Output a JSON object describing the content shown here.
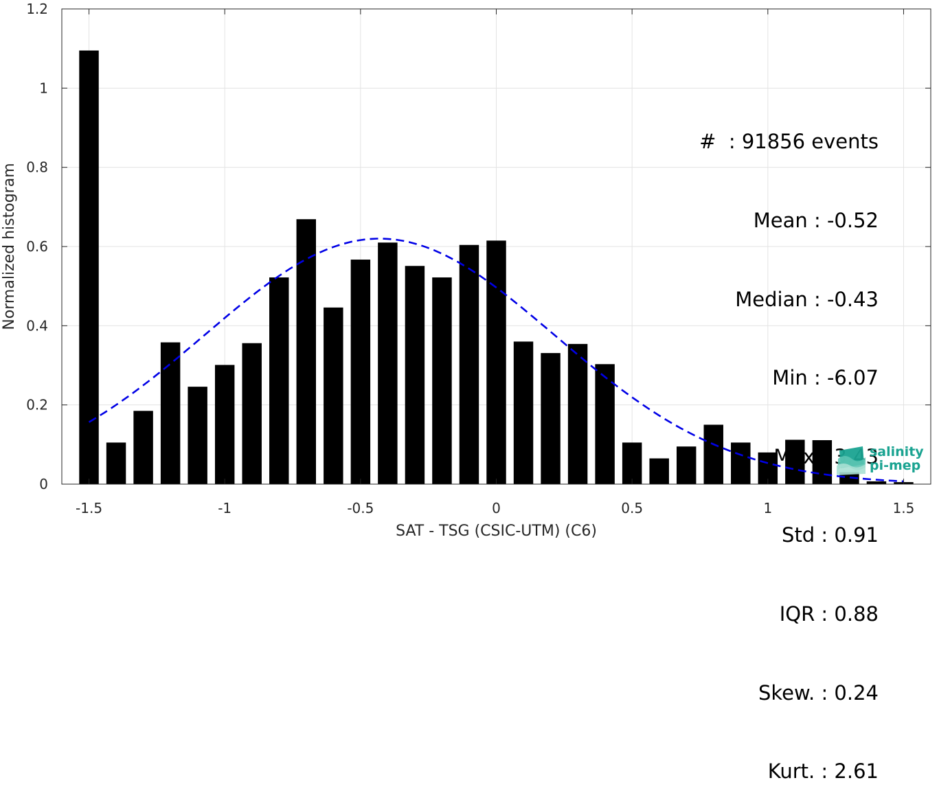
{
  "chart_data": {
    "type": "bar",
    "xlabel": "SAT - TSG (CSIC-UTM) (C6)",
    "ylabel": "Normalized histogram",
    "xlim": [
      -1.6,
      1.6
    ],
    "ylim": [
      0,
      1.2
    ],
    "xticks": [
      -1.5,
      -1,
      -0.5,
      0,
      0.5,
      1,
      1.5
    ],
    "xtick_labels": [
      "-1.5",
      "-1",
      "-0.5",
      "0",
      "0.5",
      "1",
      "1.5"
    ],
    "yticks": [
      0,
      0.2,
      0.4,
      0.6,
      0.8,
      1,
      1.2
    ],
    "ytick_labels": [
      "0",
      "0.2",
      "0.4",
      "0.6",
      "0.8",
      "1",
      "1.2"
    ],
    "grid": true,
    "bar_color": "#000000",
    "fit_color": "#0000e6",
    "bin_width": 0.1,
    "bars": {
      "x": [
        -1.5,
        -1.4,
        -1.3,
        -1.2,
        -1.1,
        -1.0,
        -0.9,
        -0.8,
        -0.7,
        -0.6,
        -0.5,
        -0.4,
        -0.3,
        -0.2,
        -0.1,
        0.0,
        0.1,
        0.2,
        0.3,
        0.4,
        0.5,
        0.6,
        0.7,
        0.8,
        0.9,
        1.0,
        1.1,
        1.2,
        1.3,
        1.4,
        1.5
      ],
      "values": [
        1.095,
        0.105,
        0.185,
        0.358,
        0.246,
        0.301,
        0.356,
        0.522,
        0.669,
        0.446,
        0.567,
        0.61,
        0.551,
        0.522,
        0.604,
        0.615,
        0.36,
        0.331,
        0.354,
        0.303,
        0.105,
        0.065,
        0.095,
        0.15,
        0.105,
        0.08,
        0.112,
        0.111,
        0.03,
        0.007,
        0.005
      ]
    },
    "fit": {
      "style": "dashed",
      "mean": -0.43,
      "std": 0.645,
      "peak": 0.62,
      "x_range": [
        -1.5,
        1.5
      ]
    }
  },
  "stats": [
    "#  : 91856 events",
    "Mean : -0.52",
    "Median : -0.43",
    "Min : -6.07",
    "Max : 3.43",
    "Std : 0.91",
    "IQR : 0.88",
    "Skew. : 0.24",
    "Kurt. : 2.61"
  ],
  "logo": {
    "line1": "salinity",
    "line2": "pi-mep",
    "icon": "wave-layers-icon",
    "color": "#1aa391"
  }
}
